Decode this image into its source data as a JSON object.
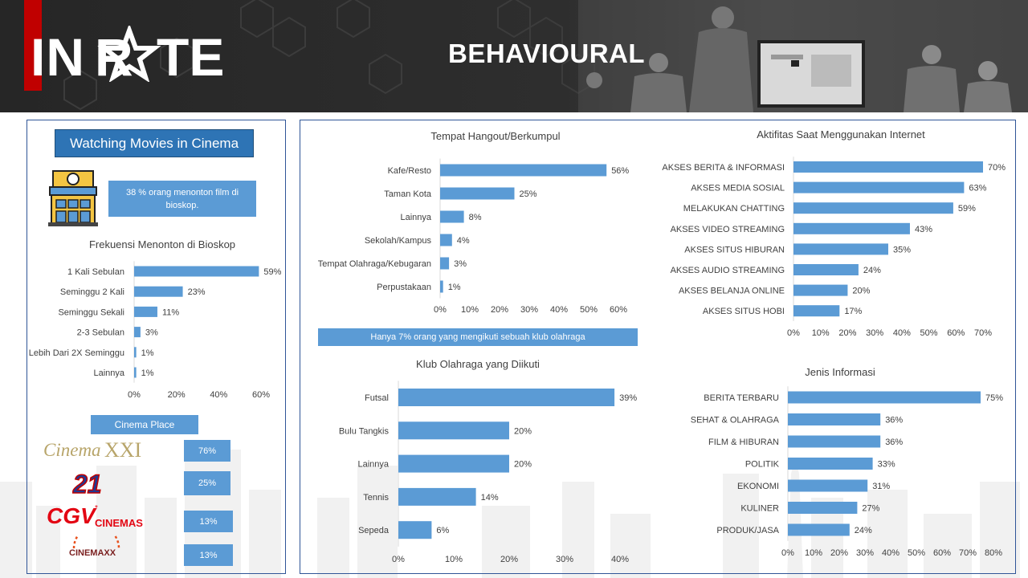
{
  "header": {
    "title": "BEHAVIOURAL",
    "logo_text": "INRATE"
  },
  "colors": {
    "bar": "#5b9bd5",
    "title_bg": "#2e74b5",
    "accent_red": "#c00000"
  },
  "left": {
    "section_title": "Watching Movies in Cinema",
    "note": "38 % orang menonton film di bioskop.",
    "cinema_place_label": "Cinema Place",
    "cinema_place": [
      {
        "name": "Cinema XXI",
        "logo": "cinema-xxi-logo",
        "value": "76%"
      },
      {
        "name": "21",
        "logo": "cinema-21-logo",
        "value": "25%"
      },
      {
        "name": "CGV CINEMAS",
        "logo": "cgv-cinemas-logo",
        "value": "13%"
      },
      {
        "name": "CINEMAXX",
        "logo": "cinemaxx-logo",
        "value": "13%"
      }
    ]
  },
  "sports_note": "Hanya 7% orang yang mengikuti sebuah klub olahraga",
  "chart_data": [
    {
      "id": "freq",
      "type": "bar",
      "orientation": "horizontal",
      "title": "Frekuensi Menonton di Bioskop",
      "categories": [
        "1 Kali Sebulan",
        "Seminggu 2 Kali",
        "Seminggu Sekali",
        "2-3 Sebulan",
        "Lebih Dari 2X Seminggu",
        "Lainnya"
      ],
      "values": [
        59,
        23,
        11,
        3,
        1,
        1
      ],
      "labels": [
        "59%",
        "23%",
        "11%",
        "3%",
        "1%",
        "1%"
      ],
      "ticks": [
        "0%",
        "20%",
        "40%",
        "60%"
      ],
      "xlim": [
        0,
        60
      ]
    },
    {
      "id": "hangout",
      "type": "bar",
      "orientation": "horizontal",
      "title": "Tempat Hangout/Berkumpul",
      "categories": [
        "Kafe/Resto",
        "Taman Kota",
        "Lainnya",
        "Sekolah/Kampus",
        "Tempat Olahraga/Kebugaran",
        "Perpustakaan"
      ],
      "values": [
        56,
        25,
        8,
        4,
        3,
        1
      ],
      "labels": [
        "56%",
        "25%",
        "8%",
        "4%",
        "3%",
        "1%"
      ],
      "ticks": [
        "0%",
        "10%",
        "20%",
        "30%",
        "40%",
        "50%",
        "60%"
      ],
      "xlim": [
        0,
        60
      ]
    },
    {
      "id": "internet",
      "type": "bar",
      "orientation": "horizontal",
      "title": "Aktifitas Saat Menggunakan Internet",
      "categories": [
        "AKSES BERITA & INFORMASI",
        "AKSES MEDIA SOSIAL",
        "MELAKUKAN CHATTING",
        "AKSES VIDEO STREAMING",
        "AKSES SITUS HIBURAN",
        "AKSES AUDIO STREAMING",
        "AKSES BELANJA ONLINE",
        "AKSES SITUS HOBI"
      ],
      "values": [
        70,
        63,
        59,
        43,
        35,
        24,
        20,
        17
      ],
      "labels": [
        "70%",
        "63%",
        "59%",
        "43%",
        "35%",
        "24%",
        "20%",
        "17%"
      ],
      "ticks": [
        "0%",
        "10%",
        "20%",
        "30%",
        "40%",
        "50%",
        "60%",
        "70%"
      ],
      "xlim": [
        0,
        70
      ]
    },
    {
      "id": "klub",
      "type": "bar",
      "orientation": "horizontal",
      "title": "Klub Olahraga yang Diikuti",
      "categories": [
        "Futsal",
        "Bulu Tangkis",
        "Lainnya",
        "Tennis",
        "Sepeda"
      ],
      "values": [
        39,
        20,
        20,
        14,
        6
      ],
      "labels": [
        "39%",
        "20%",
        "20%",
        "14%",
        "6%"
      ],
      "ticks": [
        "0%",
        "10%",
        "20%",
        "30%",
        "40%"
      ],
      "xlim": [
        0,
        40
      ]
    },
    {
      "id": "jenis",
      "type": "bar",
      "orientation": "horizontal",
      "title": "Jenis Informasi",
      "categories": [
        "BERITA TERBARU",
        "SEHAT & OLAHRAGA",
        "FILM & HIBURAN",
        "POLITIK",
        "EKONOMI",
        "KULINER",
        "PRODUK/JASA"
      ],
      "values": [
        75,
        36,
        36,
        33,
        31,
        27,
        24
      ],
      "labels": [
        "75%",
        "36%",
        "36%",
        "33%",
        "31%",
        "27%",
        "24%"
      ],
      "ticks": [
        "0%",
        "10%",
        "20%",
        "30%",
        "40%",
        "50%",
        "60%",
        "70%",
        "80%"
      ],
      "xlim": [
        0,
        80
      ]
    }
  ]
}
